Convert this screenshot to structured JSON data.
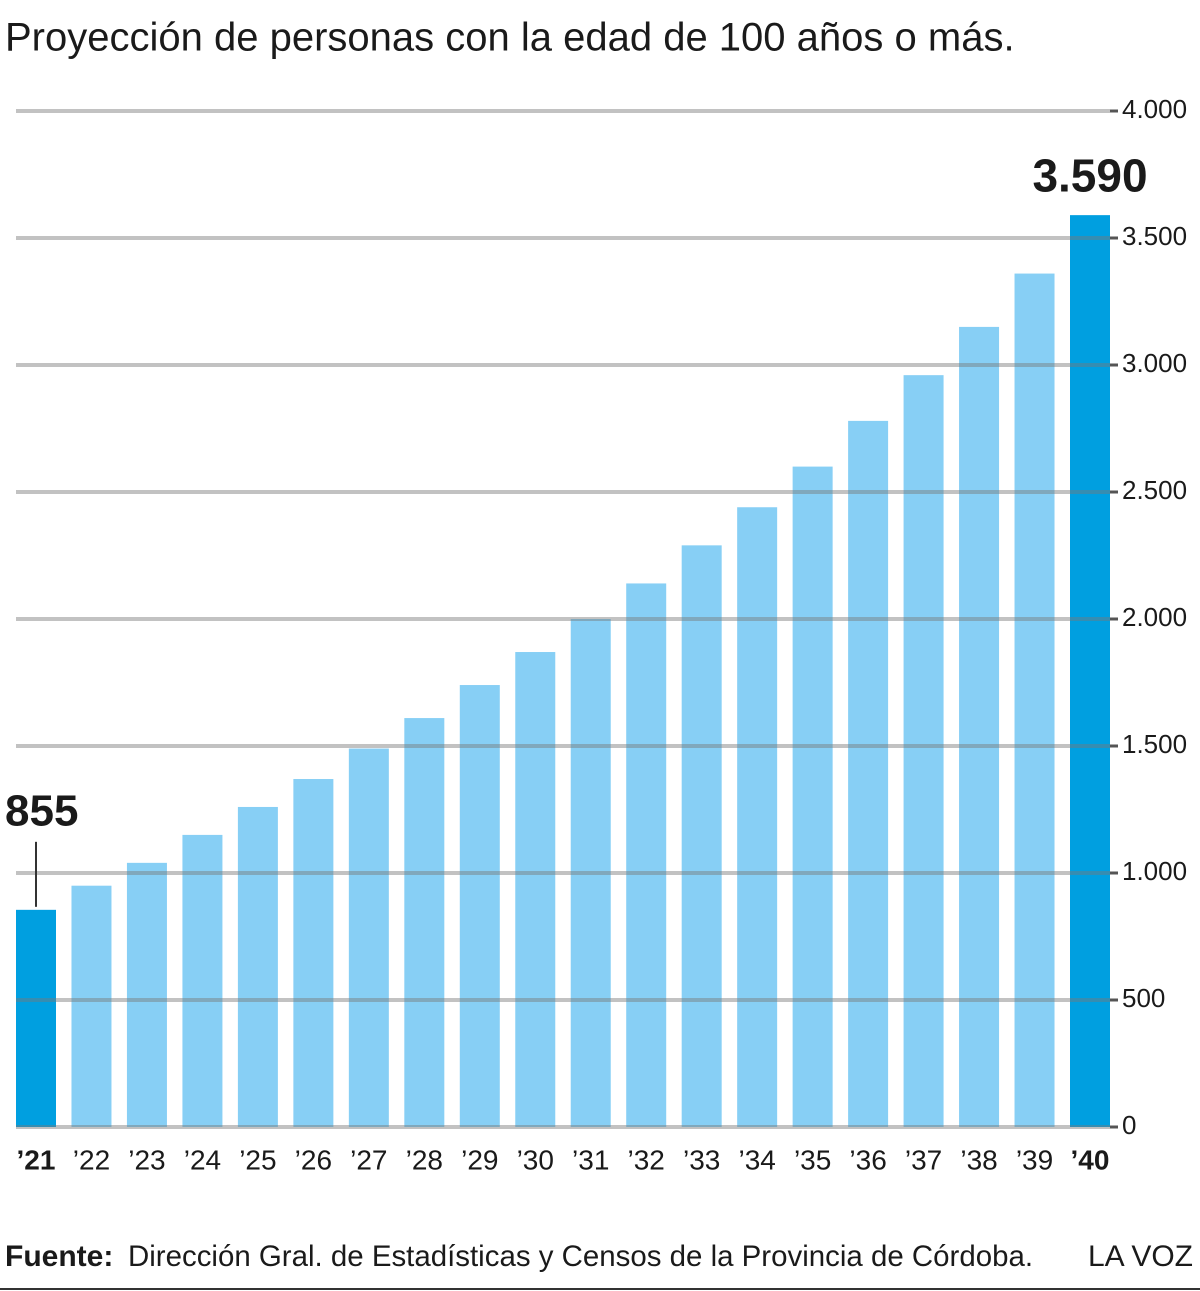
{
  "chart_data": {
    "type": "bar",
    "title": "Proyección de personas con la edad de 100 años o más.",
    "categories": [
      "’21",
      "’22",
      "’23",
      "’24",
      "’25",
      "’26",
      "’27",
      "’28",
      "’29",
      "’30",
      "’31",
      "’32",
      "’33",
      "’34",
      "’35",
      "’36",
      "’37",
      "’38",
      "’39",
      "’40"
    ],
    "values": [
      855,
      950,
      1040,
      1150,
      1260,
      1370,
      1490,
      1610,
      1740,
      1870,
      2000,
      2140,
      2290,
      2440,
      2600,
      2780,
      2960,
      3150,
      3360,
      3590
    ],
    "value_labels": [
      "855",
      null,
      null,
      null,
      null,
      null,
      null,
      null,
      null,
      null,
      null,
      null,
      null,
      null,
      null,
      null,
      null,
      null,
      null,
      "3.590"
    ],
    "colors": [
      "#009fe0",
      "#87cff5",
      "#87cff5",
      "#87cff5",
      "#87cff5",
      "#87cff5",
      "#87cff5",
      "#87cff5",
      "#87cff5",
      "#87cff5",
      "#87cff5",
      "#87cff5",
      "#87cff5",
      "#87cff5",
      "#87cff5",
      "#87cff5",
      "#87cff5",
      "#87cff5",
      "#87cff5",
      "#009fe0"
    ],
    "ylim": [
      0,
      4000
    ],
    "yticks": [
      0,
      {
        "value": 500,
        "label": "500"
      },
      {
        "value": 1000,
        "label": "1.000"
      },
      {
        "value": 1500,
        "label": "1.500"
      },
      {
        "value": 2000,
        "label": "2.000"
      },
      {
        "value": 2500,
        "label": "2.500"
      },
      {
        "value": 3000,
        "label": "3.000"
      },
      {
        "value": 3500,
        "label": "3.500"
      },
      {
        "value": 4000,
        "label": "4.000"
      }
    ],
    "grid": true,
    "source_label": "Fuente:",
    "source": "Dirección Gral. de Estadísticas y Censos de la Provincia de Córdoba.",
    "brand": "LA VOZ"
  }
}
